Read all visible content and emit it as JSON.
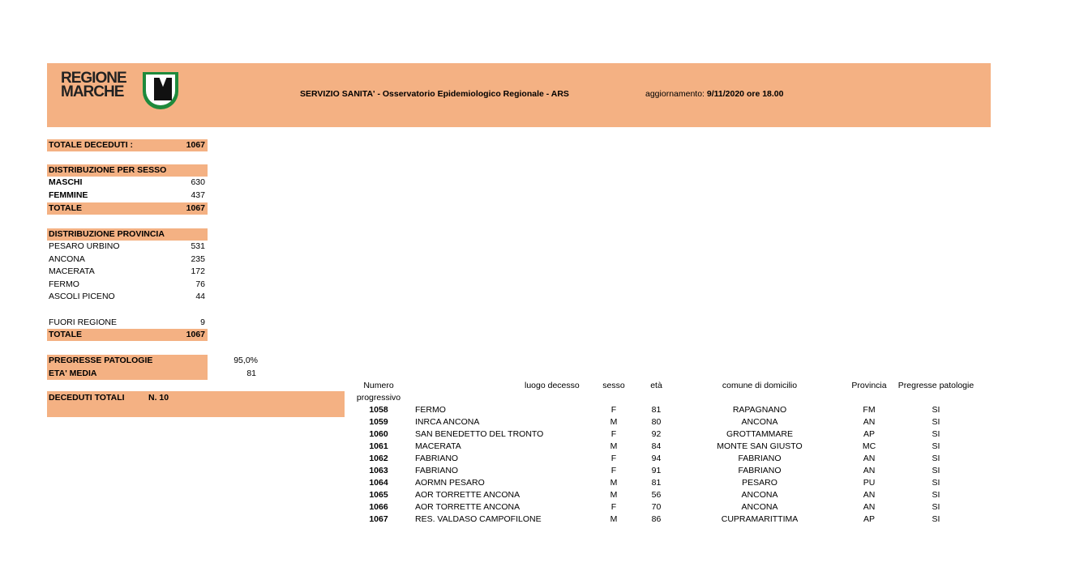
{
  "header": {
    "logo_text": [
      "REGIONE",
      "MARCHE"
    ],
    "title": "SERVIZIO SANITA' - Osservatorio Epidemiologico Regionale - ARS",
    "update_label": "aggiornamento: ",
    "update_value": "9/11/2020 ore 18.00"
  },
  "totale_deceduti": {
    "label": "TOTALE DECEDUTI :",
    "value": "1067"
  },
  "sesso": {
    "title": "DISTRIBUZIONE PER SESSO",
    "rows": [
      {
        "label": "MASCHI",
        "value": "630"
      },
      {
        "label": "FEMMINE",
        "value": "437"
      }
    ],
    "total_label": "TOTALE",
    "total_value": "1067"
  },
  "provincia": {
    "title": "DISTRIBUZIONE  PROVINCIA",
    "rows": [
      {
        "label": "PESARO URBINO",
        "value": "531"
      },
      {
        "label": "ANCONA",
        "value": "235"
      },
      {
        "label": "MACERATA",
        "value": "172"
      },
      {
        "label": "FERMO",
        "value": "76"
      },
      {
        "label": "ASCOLI PICENO",
        "value": "44"
      }
    ],
    "fuori_label": "FUORI REGIONE",
    "fuori_value": "9",
    "total_label": "TOTALE",
    "total_value": "1067"
  },
  "pregresse": {
    "label": "PREGRESSE PATOLOGIE",
    "value": "95,0%"
  },
  "eta_media": {
    "label": "ETA' MEDIA",
    "value": "81"
  },
  "deceduti_totali": {
    "label": "DECEDUTI TOTALI",
    "value": "N. 10"
  },
  "table": {
    "headers": [
      "Numero progressivo",
      "luogo decesso",
      "sesso",
      "età",
      "comune di domicilio",
      "Provincia",
      "Pregresse patologie"
    ],
    "rows": [
      [
        "1058",
        "FERMO",
        "F",
        "81",
        "RAPAGNANO",
        "FM",
        "SI"
      ],
      [
        "1059",
        "INRCA ANCONA",
        "M",
        "80",
        "ANCONA",
        "AN",
        "SI"
      ],
      [
        "1060",
        "SAN BENEDETTO DEL TRONTO",
        "F",
        "92",
        "GROTTAMMARE",
        "AP",
        "SI"
      ],
      [
        "1061",
        "MACERATA",
        "M",
        "84",
        "MONTE SAN GIUSTO",
        "MC",
        "SI"
      ],
      [
        "1062",
        "FABRIANO",
        "F",
        "94",
        "FABRIANO",
        "AN",
        "SI"
      ],
      [
        "1063",
        "FABRIANO",
        "F",
        "91",
        "FABRIANO",
        "AN",
        "SI"
      ],
      [
        "1064",
        "AORMN PESARO",
        "M",
        "81",
        "PESARO",
        "PU",
        "SI"
      ],
      [
        "1065",
        "AOR TORRETTE ANCONA",
        "M",
        "56",
        "ANCONA",
        "AN",
        "SI"
      ],
      [
        "1066",
        "AOR TORRETTE ANCONA",
        "F",
        "70",
        "ANCONA",
        "AN",
        "SI"
      ],
      [
        "1067",
        "RES. VALDASO CAMPOFILONE",
        "M",
        "86",
        "CUPRAMARITTIMA",
        "AP",
        "SI"
      ]
    ]
  },
  "colors": {
    "accent": "#f4b183",
    "logo_green": "#1e8a3c"
  }
}
